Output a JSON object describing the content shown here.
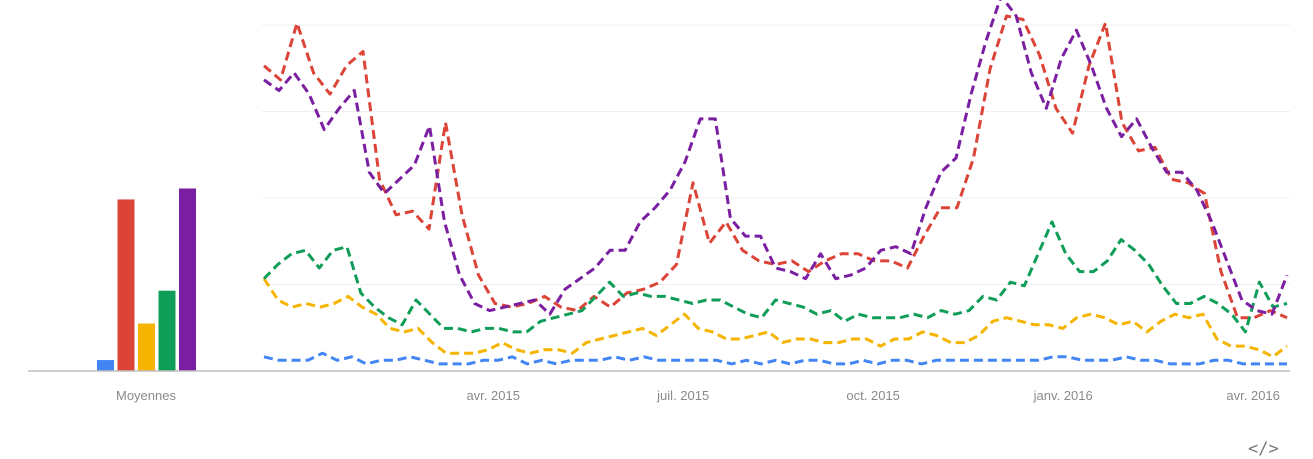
{
  "chart_data": [
    {
      "type": "bar",
      "categories": [
        "Moyennes"
      ],
      "series": [
        {
          "color": "#4285f4",
          "values": [
            3
          ]
        },
        {
          "color": "#db4437",
          "values": [
            47
          ]
        },
        {
          "color": "#f4b400",
          "values": [
            13
          ]
        },
        {
          "color": "#0f9d58",
          "values": [
            22
          ]
        },
        {
          "color": "#7b1fa2",
          "values": [
            50
          ]
        }
      ],
      "ylim": [
        0,
        100
      ],
      "xlabel": "",
      "ylabel": "",
      "grid": false
    },
    {
      "type": "line",
      "x_tick_labels": [
        "avr. 2015",
        "juil. 2015",
        "oct. 2015",
        "janv. 2016",
        "avr. 2016"
      ],
      "x_tick_index": [
        15,
        28,
        41,
        54,
        67
      ],
      "line_style": "dashed",
      "grid": true,
      "ylim": [
        0,
        100
      ],
      "series": [
        {
          "color": "#4285f4",
          "values": [
            4,
            3,
            3,
            3,
            5,
            3,
            4,
            2,
            3,
            3,
            4,
            3,
            2,
            2,
            2,
            3,
            3,
            4,
            2,
            3,
            2,
            3,
            3,
            3,
            4,
            3,
            4,
            3,
            3,
            3,
            3,
            3,
            2,
            3,
            2,
            3,
            2,
            3,
            3,
            2,
            2,
            3,
            2,
            3,
            3,
            2,
            3,
            3,
            3,
            3,
            3,
            3,
            3,
            3,
            4,
            4,
            3,
            3,
            3,
            4,
            3,
            3,
            2,
            2,
            2,
            3,
            3,
            2,
            2,
            2,
            2
          ]
        },
        {
          "color": "#db4437",
          "values": [
            86,
            82,
            98,
            84,
            78,
            86,
            90,
            54,
            44,
            45,
            40,
            70,
            44,
            27,
            19,
            18,
            19,
            21,
            18,
            17,
            21,
            18,
            22,
            23,
            25,
            30,
            53,
            36,
            42,
            34,
            31,
            30,
            31,
            28,
            31,
            33,
            33,
            31,
            31,
            29,
            38,
            46,
            46,
            60,
            85,
            100,
            99,
            89,
            74,
            67,
            86,
            98,
            70,
            62,
            63,
            54,
            53,
            50,
            28,
            15,
            15,
            17,
            15
          ]
        },
        {
          "color": "#f4b400",
          "values": [
            26,
            20,
            18,
            19,
            18,
            19,
            21,
            18,
            16,
            12,
            11,
            12,
            8,
            5,
            5,
            5,
            6,
            8,
            6,
            5,
            6,
            6,
            5,
            8,
            9,
            10,
            11,
            12,
            10,
            13,
            16,
            12,
            11,
            9,
            9,
            10,
            11,
            8,
            9,
            9,
            8,
            8,
            9,
            9,
            7,
            9,
            9,
            11,
            10,
            8,
            8,
            10,
            14,
            15,
            14,
            13,
            13,
            12,
            15,
            16,
            15,
            13,
            14,
            11,
            14,
            16,
            15,
            16,
            9,
            7,
            7,
            6,
            4,
            7
          ]
        },
        {
          "color": "#0f9d58",
          "values": [
            26,
            30,
            33,
            34,
            29,
            34,
            35,
            22,
            18,
            15,
            13,
            20,
            16,
            12,
            12,
            11,
            12,
            12,
            11,
            11,
            14,
            15,
            16,
            17,
            21,
            25,
            21,
            22,
            21,
            21,
            20,
            19,
            20,
            20,
            18,
            16,
            15,
            20,
            19,
            18,
            16,
            17,
            14,
            16,
            15,
            15,
            15,
            16,
            15,
            17,
            16,
            17,
            21,
            20,
            25,
            24,
            33,
            42,
            33,
            28,
            28,
            31,
            37,
            34,
            30,
            24,
            19,
            19,
            21,
            19,
            16,
            11,
            25,
            18,
            19
          ]
        },
        {
          "color": "#7b1fa2",
          "values": [
            82,
            79,
            84,
            78,
            68,
            74,
            79,
            56,
            50,
            54,
            58,
            69,
            42,
            27,
            19,
            17,
            18,
            19,
            20,
            16,
            23,
            26,
            29,
            34,
            34,
            42,
            46,
            51,
            59,
            71,
            71,
            43,
            38,
            38,
            29,
            28,
            26,
            33,
            26,
            27,
            29,
            34,
            35,
            33,
            46,
            56,
            60,
            78,
            93,
            108,
            100,
            84,
            74,
            88,
            96,
            86,
            74,
            66,
            71,
            63,
            56,
            56,
            51,
            42,
            31,
            20,
            17,
            16,
            27
          ]
        }
      ]
    }
  ],
  "labels": {
    "moyennes": "Moyennes",
    "embed_icon": "code-icon",
    "embed_glyph": "</>"
  }
}
